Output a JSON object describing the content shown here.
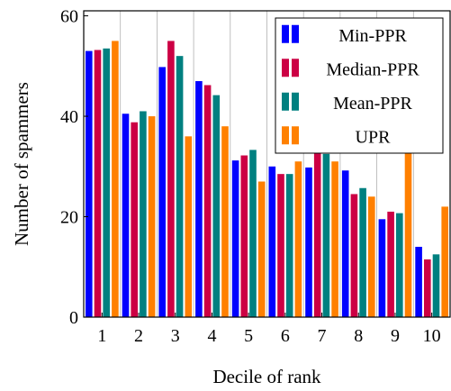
{
  "chart_data": {
    "type": "bar",
    "title": "",
    "xlabel": "Decile of rank",
    "ylabel": "Number of spammers",
    "categories": [
      "1",
      "2",
      "3",
      "4",
      "5",
      "6",
      "7",
      "8",
      "9",
      "10"
    ],
    "yticks": [
      "0",
      "20",
      "40",
      "60"
    ],
    "ylim": [
      0,
      61
    ],
    "grid": "vertical",
    "legend_position": "top-right",
    "series": [
      {
        "name": "Min-PPR",
        "color": "#0000ff",
        "values": [
          53,
          40.5,
          49.8,
          47,
          31.2,
          30,
          29.8,
          29.2,
          19.5,
          14
        ]
      },
      {
        "name": "Median-PPR",
        "color": "#cc0044",
        "values": [
          53.2,
          38.8,
          55,
          46.2,
          32.2,
          28.5,
          33,
          24.5,
          21,
          11.5
        ]
      },
      {
        "name": "Mean-PPR",
        "color": "#008080",
        "values": [
          53.5,
          41,
          52,
          44.2,
          33.3,
          28.5,
          32.5,
          25.7,
          20.7,
          12.5
        ]
      },
      {
        "name": "UPR",
        "color": "#ff8000",
        "values": [
          55,
          40,
          36,
          38,
          27,
          31,
          31,
          24,
          38,
          22
        ]
      }
    ]
  }
}
